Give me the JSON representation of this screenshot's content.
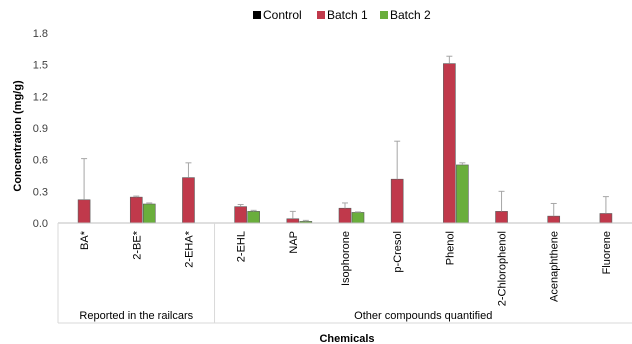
{
  "chart_data": {
    "type": "bar",
    "categories": [
      "BA*",
      "2-BE*",
      "2-EHA*",
      "2-EHL",
      "NAP",
      "Isophorone",
      "p-Cresol",
      "Phenol",
      "2-Chlorophenol",
      "Acenaphthene",
      "Fluorene"
    ],
    "series": [
      {
        "name": "Control",
        "color": "#000000",
        "values": [
          0,
          0,
          0,
          0,
          0,
          0,
          0,
          0,
          0,
          0,
          0
        ],
        "errors": [
          0,
          0,
          0,
          0,
          0,
          0,
          0,
          0,
          0,
          0,
          0
        ]
      },
      {
        "name": "Batch 1",
        "color": "#C0394B",
        "values": [
          0.22,
          0.245,
          0.43,
          0.155,
          0.04,
          0.14,
          0.415,
          1.51,
          0.11,
          0.065,
          0.09
        ],
        "errors": [
          0.39,
          0.01,
          0.14,
          0.02,
          0.07,
          0.05,
          0.36,
          0.07,
          0.19,
          0.12,
          0.16
        ]
      },
      {
        "name": "Batch 2",
        "color": "#6AAE3C",
        "values": [
          0,
          0.18,
          0,
          0.11,
          0.015,
          0.1,
          0,
          0.55,
          0,
          0,
          0
        ],
        "errors": [
          0,
          0.01,
          0,
          0.01,
          0.01,
          0.005,
          0,
          0.02,
          0,
          0,
          0
        ]
      }
    ],
    "groups": [
      {
        "label": "Reported in the railcars",
        "from": 0,
        "to": 2
      },
      {
        "label": "Other compounds quantified",
        "from": 3,
        "to": 10
      }
    ],
    "xlabel": "Chemicals",
    "ylabel": "Concentration (mg/g)",
    "ylim": [
      0,
      1.8
    ],
    "yticks": [
      "0.0",
      "0.3",
      "0.6",
      "0.9",
      "1.2",
      "1.5",
      "1.8"
    ],
    "grid": false,
    "legend_position": "top"
  }
}
